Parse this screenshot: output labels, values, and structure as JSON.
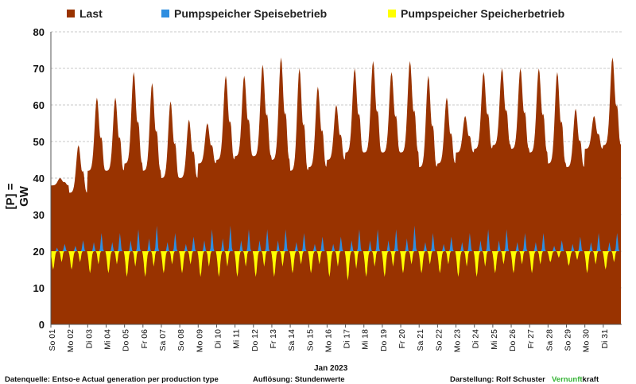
{
  "chart_data": {
    "type": "area",
    "ylabel": "[P] = GW",
    "xlabel": "Jan 2023",
    "ylim": [
      0,
      80
    ],
    "yticks": [
      0,
      10,
      20,
      30,
      40,
      50,
      60,
      70,
      80
    ],
    "grid": true,
    "legend_position": "top",
    "day_labels": [
      "So 01",
      "Mo 02",
      "Di 03",
      "Mi 04",
      "Do 05",
      "Fr 06",
      "Sa 07",
      "So 08",
      "Mo 09",
      "Di 10",
      "Mi 11",
      "Do 12",
      "Fr 13",
      "Sa 14",
      "So 15",
      "Mo 16",
      "Di 17",
      "Mi 18",
      "Do 19",
      "Fr 20",
      "Sa 21",
      "So 22",
      "Mo 23",
      "Di 24",
      "Mi 25",
      "Do 26",
      "Fr 27",
      "Sa 28",
      "So 29",
      "Mo 30",
      "Di 31"
    ],
    "series": [
      {
        "name": "Last",
        "color": "#993300",
        "daily_min": [
          38,
          36,
          42,
          42,
          44,
          42,
          40,
          40,
          44,
          45,
          46,
          46,
          45,
          42,
          43,
          45,
          47,
          47,
          47,
          47,
          43,
          44,
          47,
          48,
          49,
          48,
          47,
          44,
          43,
          48,
          49
        ],
        "daily_max": [
          40,
          49,
          62,
          62,
          69,
          66,
          61,
          56,
          55,
          68,
          68,
          71,
          73,
          70,
          65,
          60,
          70,
          72,
          69,
          72,
          68,
          62,
          57,
          69,
          70,
          70,
          70,
          69,
          59,
          57,
          73
        ]
      },
      {
        "name": "Pumpspeicher Speisebetrieb",
        "color": "#2f8ee0",
        "base": 20,
        "daily_peak": [
          22,
          23,
          25,
          25,
          26,
          27,
          25,
          24,
          26,
          27,
          26,
          26,
          26,
          25,
          24,
          24,
          26,
          26,
          26,
          27,
          25,
          24,
          25,
          26,
          26,
          25,
          25,
          23,
          24,
          25,
          25
        ]
      },
      {
        "name": "Pumpspeicher Speicherbetrieb",
        "color": "#ffff00",
        "base": 20,
        "daily_trough": [
          15,
          15,
          14,
          14,
          13,
          13,
          14,
          14,
          13,
          13,
          13,
          13,
          13,
          14,
          14,
          13,
          12,
          13,
          13,
          14,
          14,
          14,
          13,
          13,
          14,
          14,
          14,
          17,
          16,
          14,
          15
        ]
      }
    ]
  },
  "footer": {
    "source": "Datenquelle: Entso-e  Actual generation per production type",
    "resolution": "Auflösung: Stundenwerte",
    "author_label": "Darstellung:  Rolf Schuster",
    "brand_part1": "Vernunft",
    "brand_part2": "kraft"
  }
}
